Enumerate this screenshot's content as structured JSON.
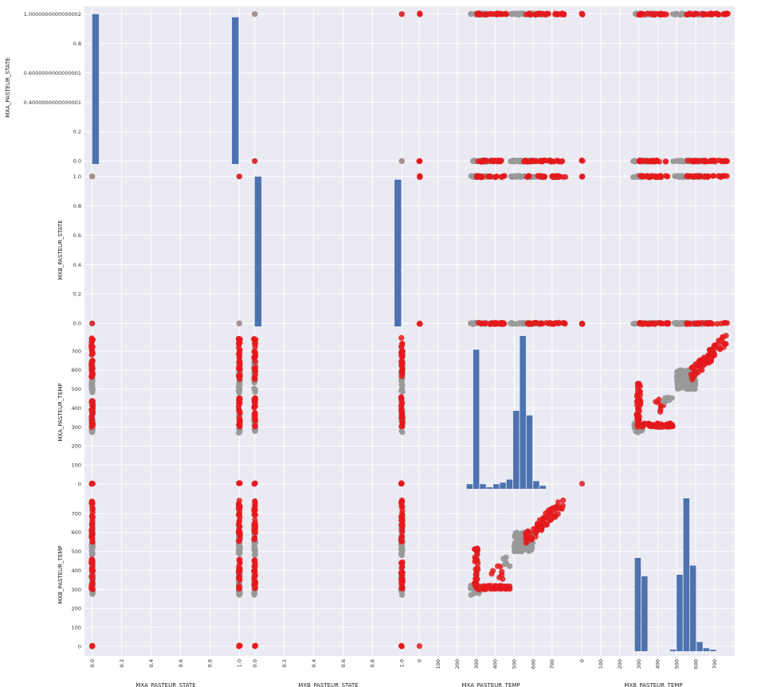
{
  "chart_data": {
    "type": "scatter_matrix",
    "variables": [
      "MXA_PASTEUR_STATE",
      "MXB_PASTEUR_STATE",
      "MXA_PASTEUR_TEMP",
      "MXB_PASTEUR_TEMP"
    ],
    "colors": {
      "background": "#EAEAF2",
      "grid": "#FFFFFF",
      "hist": "#4C72B0",
      "group_a": "#999999",
      "group_b": "#E41A1C"
    },
    "grid": true,
    "y_tick_labels": {
      "MXA_PASTEUR_STATE": [
        {
          "value": 0.0,
          "label": "0.0"
        },
        {
          "value": 0.2,
          "label": "0.2"
        },
        {
          "value": 0.4,
          "label": "0.4000000000000001"
        },
        {
          "value": 0.6,
          "label": "0.6000000000000001"
        },
        {
          "value": 0.8,
          "label": "0.8"
        },
        {
          "value": 1.0,
          "label": "1.0000000000000002"
        }
      ],
      "MXB_PASTEUR_STATE": [
        {
          "value": 0.0,
          "label": "0.0"
        },
        {
          "value": 0.2,
          "label": "0.2"
        },
        {
          "value": 0.4,
          "label": "0.4"
        },
        {
          "value": 0.6,
          "label": "0.6"
        },
        {
          "value": 0.8,
          "label": "0.8"
        },
        {
          "value": 1.0,
          "label": "1.0"
        }
      ],
      "MXA_PASTEUR_TEMP": [
        {
          "value": 0,
          "label": "0"
        },
        {
          "value": 100,
          "label": "100"
        },
        {
          "value": 200,
          "label": "200"
        },
        {
          "value": 300,
          "label": "300"
        },
        {
          "value": 400,
          "label": "400"
        },
        {
          "value": 500,
          "label": "500"
        },
        {
          "value": 600,
          "label": "600"
        },
        {
          "value": 700,
          "label": "700"
        }
      ],
      "MXB_PASTEUR_TEMP": [
        {
          "value": 0,
          "label": "0"
        },
        {
          "value": 100,
          "label": "100"
        },
        {
          "value": 200,
          "label": "200"
        },
        {
          "value": 300,
          "label": "300"
        },
        {
          "value": 400,
          "label": "400"
        },
        {
          "value": 500,
          "label": "500"
        },
        {
          "value": 600,
          "label": "600"
        },
        {
          "value": 700,
          "label": "700"
        }
      ]
    },
    "x_tick_labels": {
      "MXA_PASTEUR_STATE": [
        {
          "value": 0.0,
          "label": "0.0"
        },
        {
          "value": 0.2,
          "label": "0.2"
        },
        {
          "value": 0.4,
          "label": "0.4"
        },
        {
          "value": 0.6,
          "label": "0.6"
        },
        {
          "value": 0.8,
          "label": "0.8"
        },
        {
          "value": 1.0,
          "label": "1.0"
        }
      ],
      "MXB_PASTEUR_STATE": [
        {
          "value": 0.0,
          "label": "0.0"
        },
        {
          "value": 0.2,
          "label": "0.2"
        },
        {
          "value": 0.4,
          "label": "0.4"
        },
        {
          "value": 0.6,
          "label": "0.6"
        },
        {
          "value": 0.8,
          "label": "0.8"
        },
        {
          "value": 1.0,
          "label": "1.0"
        }
      ],
      "MXA_PASTEUR_TEMP": [
        {
          "value": 0,
          "label": "0"
        },
        {
          "value": 100,
          "label": "100"
        },
        {
          "value": 200,
          "label": "200"
        },
        {
          "value": 300,
          "label": "300"
        },
        {
          "value": 400,
          "label": "400"
        },
        {
          "value": 500,
          "label": "500"
        },
        {
          "value": 600,
          "label": "600"
        },
        {
          "value": 700,
          "label": "700"
        }
      ],
      "MXB_PASTEUR_TEMP": [
        {
          "value": 0,
          "label": "0"
        },
        {
          "value": 100,
          "label": "100"
        },
        {
          "value": 200,
          "label": "200"
        },
        {
          "value": 300,
          "label": "300"
        },
        {
          "value": 400,
          "label": "400"
        },
        {
          "value": 500,
          "label": "500"
        },
        {
          "value": 600,
          "label": "600"
        },
        {
          "value": 700,
          "label": "700"
        }
      ]
    },
    "axis_ranges": {
      "MXA_PASTEUR_STATE": [
        -0.02,
        1.02
      ],
      "MXB_PASTEUR_STATE": [
        -0.02,
        1.02
      ],
      "MXA_PASTEUR_TEMP": [
        -25,
        780
      ],
      "MXB_PASTEUR_TEMP": [
        -25,
        780
      ]
    },
    "histograms": {
      "MXA_PASTEUR_STATE": {
        "bins": [
          [
            0.0,
            0.05,
            0.98
          ],
          [
            0.95,
            1.0,
            0.96
          ]
        ]
      },
      "MXB_PASTEUR_STATE": {
        "bins": [
          [
            0.0,
            0.05,
            0.98
          ],
          [
            0.95,
            1.0,
            0.96
          ]
        ]
      },
      "MXA_PASTEUR_TEMP": {
        "bins": [
          [
            250,
            285,
            0.03
          ],
          [
            285,
            320,
            0.91
          ],
          [
            320,
            355,
            0.03
          ],
          [
            355,
            390,
            0.01
          ],
          [
            390,
            425,
            0.03
          ],
          [
            425,
            460,
            0.04
          ],
          [
            460,
            495,
            0.06
          ],
          [
            495,
            530,
            0.51
          ],
          [
            530,
            565,
            1.0
          ],
          [
            565,
            600,
            0.48
          ],
          [
            600,
            635,
            0.05
          ],
          [
            635,
            670,
            0.02
          ]
        ]
      },
      "MXB_PASTEUR_TEMP": {
        "bins": [
          [
            280,
            315,
            0.61
          ],
          [
            315,
            350,
            0.49
          ],
          [
            465,
            500,
            0.01
          ],
          [
            500,
            535,
            0.5
          ],
          [
            535,
            570,
            1.0
          ],
          [
            570,
            605,
            0.56
          ],
          [
            605,
            640,
            0.06
          ],
          [
            640,
            675,
            0.02
          ],
          [
            675,
            710,
            0.01
          ]
        ]
      }
    },
    "scatter_clusters": {
      "note_states": "Each row uses the grey group (#999999) and red group (#E41A1C).",
      "temp_temp": [
        {
          "group": "a",
          "x_range": [
            500,
            600
          ],
          "y_range": [
            500,
            600
          ],
          "n": 140
        },
        {
          "group": "a",
          "x_range": [
            270,
            320
          ],
          "y_range": [
            270,
            320
          ],
          "n": 20
        },
        {
          "group": "b",
          "x_range": [
            560,
            760
          ],
          "y_range": [
            560,
            760
          ],
          "n": 70
        },
        {
          "group": "b",
          "x_range": [
            290,
            310
          ],
          "y_range": [
            300,
            530
          ],
          "n": 40
        },
        {
          "group": "b",
          "x_range": [
            310,
            480
          ],
          "y_range": [
            300,
            320
          ],
          "n": 50
        },
        {
          "group": "b",
          "x_range": [
            360,
            440
          ],
          "y_range": [
            350,
            460
          ],
          "n": 8
        },
        {
          "group": "a",
          "x_range": [
            430,
            480
          ],
          "y_range": [
            420,
            470
          ],
          "n": 6
        }
      ],
      "state_vs_temp": [
        {
          "group": "a",
          "temp_range": [
            270,
            390
          ],
          "n": 25
        },
        {
          "group": "a",
          "temp_range": [
            480,
            650
          ],
          "n": 35
        },
        {
          "group": "b",
          "temp_range": [
            300,
            460
          ],
          "n": 25
        },
        {
          "group": "b",
          "temp_range": [
            550,
            770
          ],
          "n": 30
        },
        {
          "group": "b",
          "temp_range": [
            0,
            5
          ],
          "n": 3
        }
      ]
    }
  }
}
